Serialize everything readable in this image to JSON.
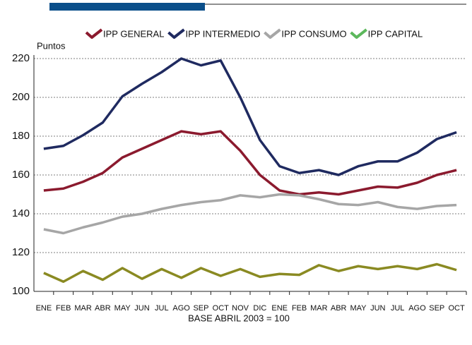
{
  "chart_data": {
    "type": "line",
    "y_label": "Puntos",
    "footnote": "BASE ABRIL 2003 = 100",
    "categories": [
      "ENE",
      "FEB",
      "MAR",
      "ABR",
      "MAY",
      "JUN",
      "JUL",
      "AGO",
      "SEP",
      "OCT",
      "NOV",
      "DIC",
      "ENE",
      "FEB",
      "MAR",
      "ABR",
      "MAY",
      "JUN",
      "JUL",
      "AGO",
      "SEP",
      "OCT"
    ],
    "series": [
      {
        "name": "IPP GENERAL",
        "color": "#8b1a2e",
        "values": [
          152,
          153,
          156.5,
          161,
          169,
          173.5,
          178,
          182.5,
          181,
          182.5,
          172.5,
          160,
          152,
          150,
          151,
          150,
          152,
          154,
          153.5,
          156,
          160,
          162.5
        ]
      },
      {
        "name": "IPP INTERMEDIO",
        "color": "#1f2a60",
        "values": [
          173.5,
          175,
          180.5,
          187,
          200.5,
          207,
          213,
          220,
          216.5,
          219,
          200,
          178,
          164.5,
          161,
          162.5,
          160,
          164.5,
          167,
          167,
          171.5,
          178.5,
          182
        ]
      },
      {
        "name": "IPP CONSUMO",
        "color": "#a6a6a6",
        "values": [
          132,
          130,
          133,
          135.5,
          138.5,
          140,
          142.5,
          144.5,
          146,
          147,
          149.5,
          148.5,
          150,
          149.5,
          147.5,
          145,
          144.5,
          146,
          143.5,
          142.5,
          144,
          144.5
        ]
      },
      {
        "name": "IPP CAPITAL",
        "color": "#8a8a22",
        "legend_color": "#5cb85c",
        "values": [
          109.5,
          105,
          110.5,
          106,
          112,
          106.5,
          111.5,
          107,
          112,
          108,
          111.5,
          107.5,
          109,
          108.5,
          113.5,
          110.5,
          113,
          111.5,
          113,
          111.5,
          114,
          111
        ]
      }
    ],
    "ylim": [
      100,
      220
    ],
    "yticks": [
      100,
      120,
      140,
      160,
      180,
      200,
      220
    ],
    "grid": true
  }
}
